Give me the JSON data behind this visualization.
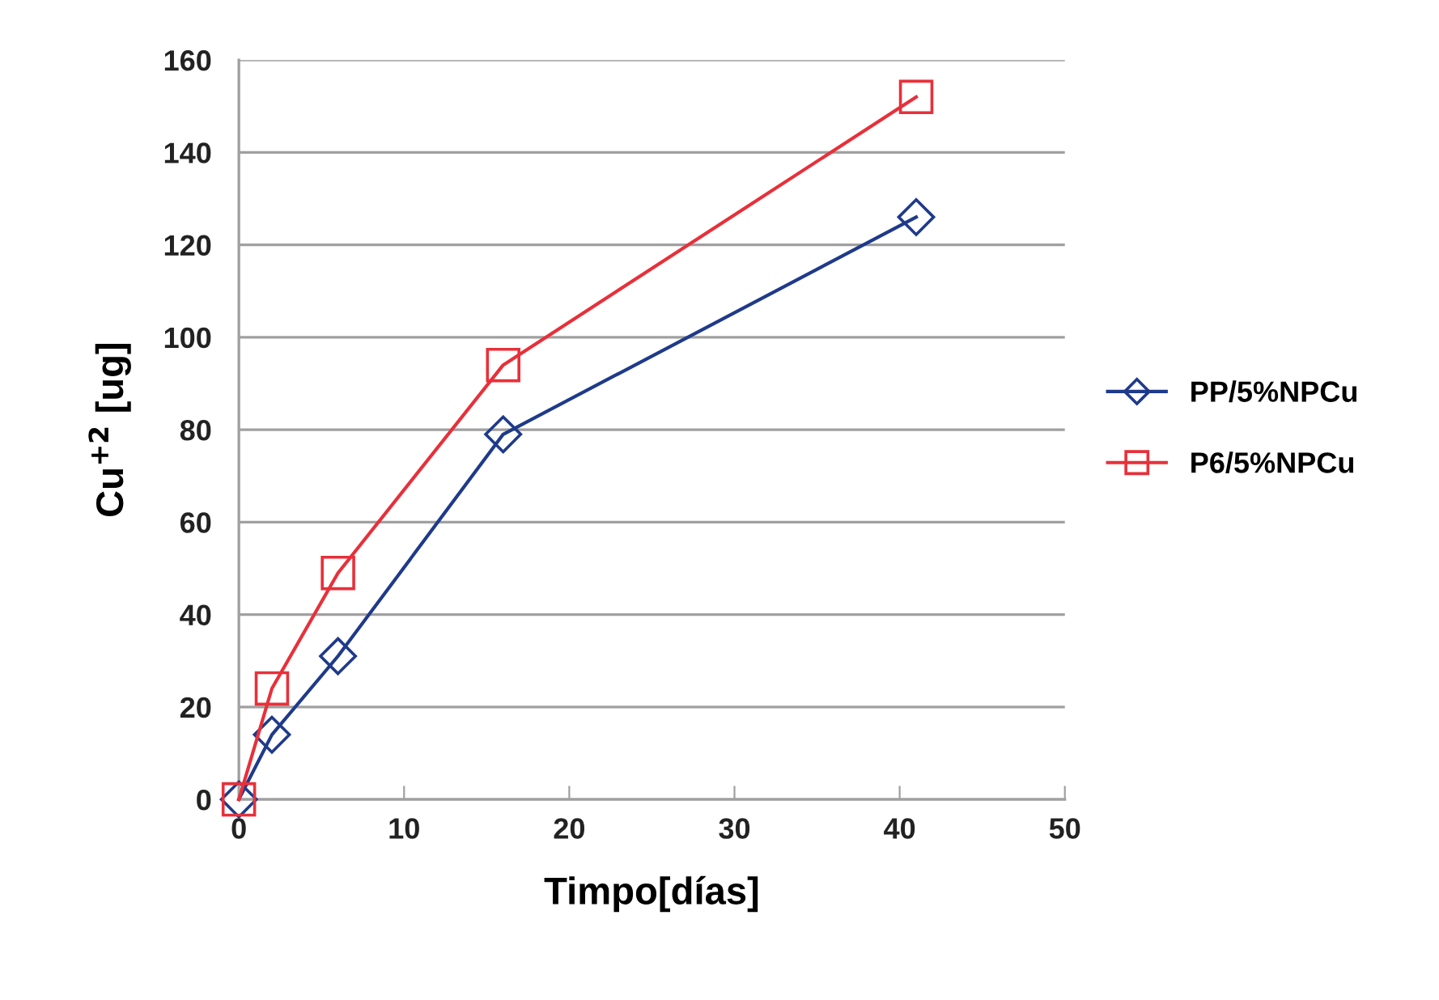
{
  "chart_data": {
    "type": "line",
    "xlabel": "Timpo[días]",
    "ylabel": "Cu$^{+2}$ [ug]",
    "xlim": [
      0,
      50
    ],
    "xticks": [
      0,
      10,
      20,
      30,
      40,
      50
    ],
    "ylim": [
      0,
      160
    ],
    "yticks": [
      0,
      20,
      40,
      60,
      80,
      100,
      120,
      140,
      160
    ],
    "grid": "y",
    "legend": "right",
    "series": [
      {
        "name": "PP/5%NPCu",
        "color": "#1f3a8a",
        "marker": "diamond",
        "x": [
          0,
          2,
          6,
          16,
          41
        ],
        "values": [
          0,
          14,
          31,
          79,
          126
        ]
      },
      {
        "name": "P6/5%NPCu",
        "color": "#e8303a",
        "marker": "square",
        "x": [
          0,
          2,
          6,
          16,
          41
        ],
        "values": [
          0,
          24,
          49,
          94,
          152
        ]
      }
    ]
  }
}
